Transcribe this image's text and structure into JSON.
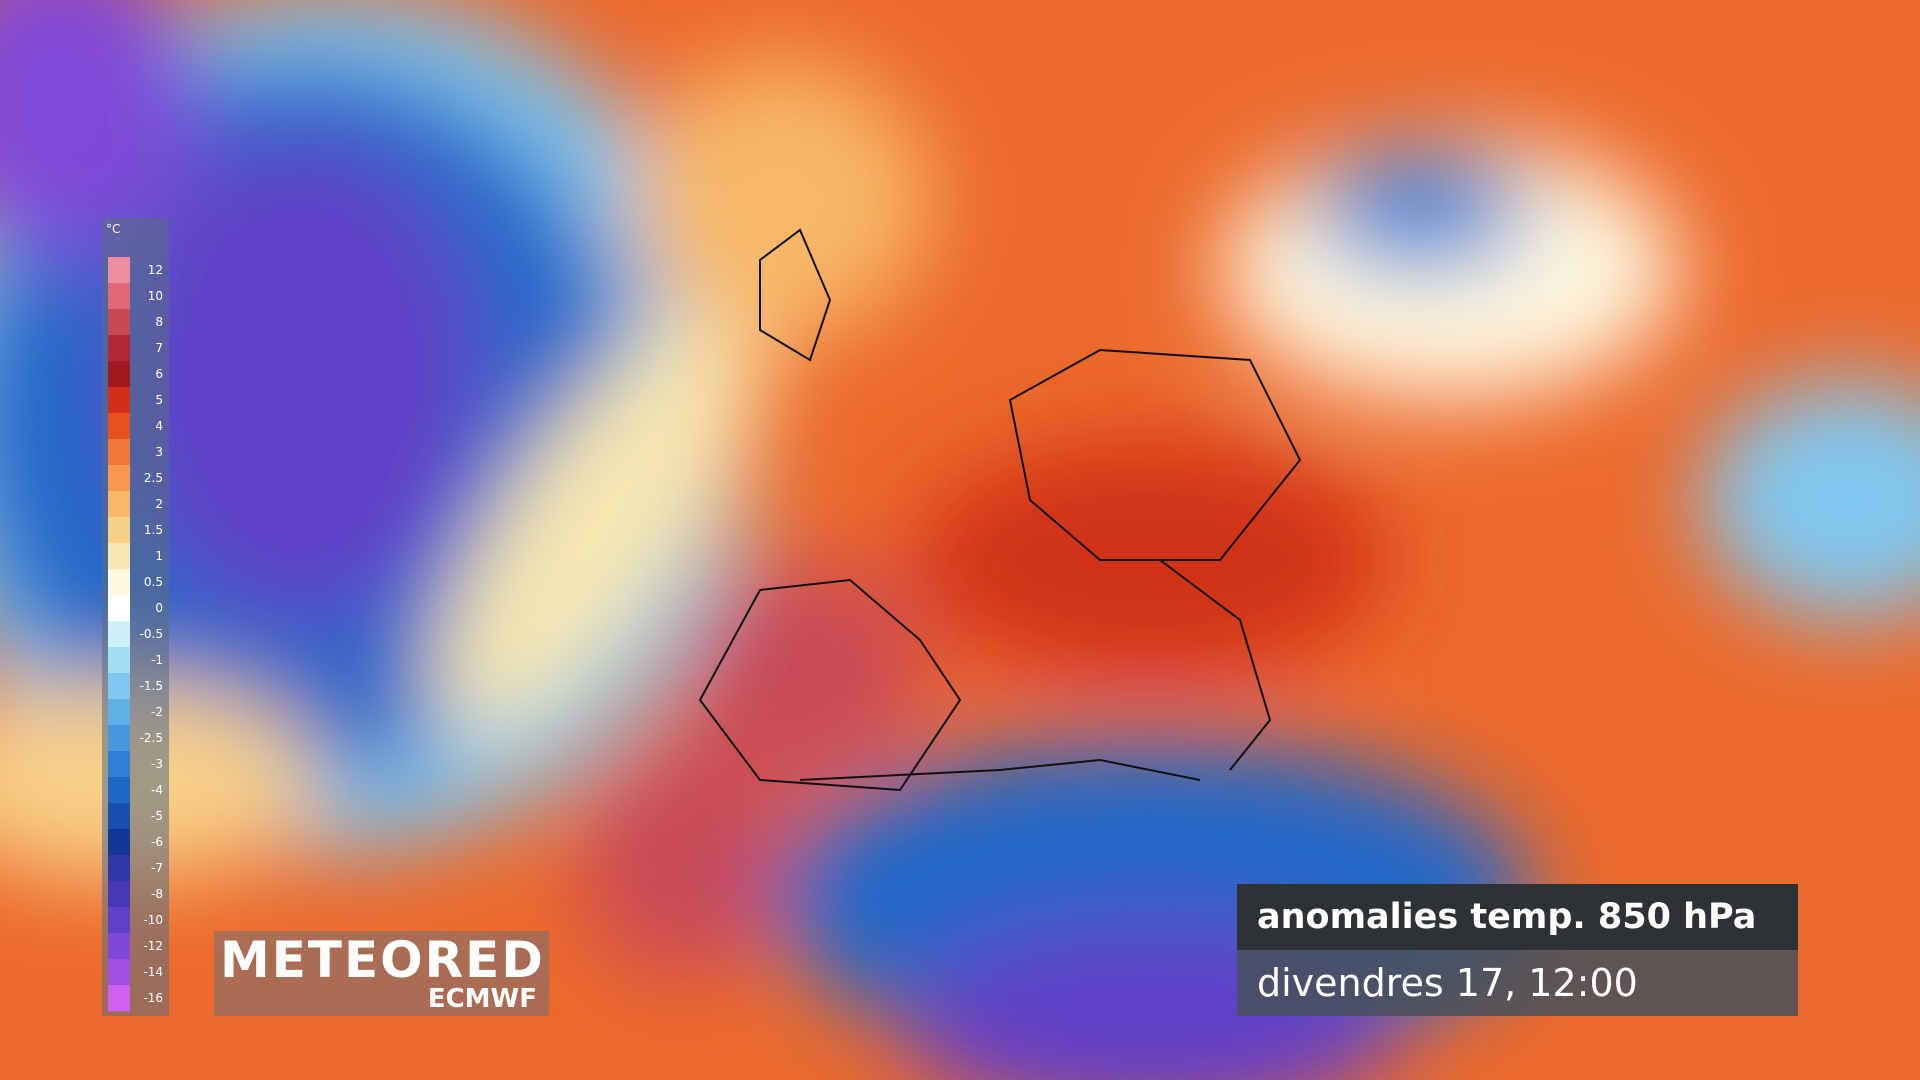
{
  "legend": {
    "unit": "°C",
    "items": [
      {
        "label": "12",
        "color": "#f08ca0"
      },
      {
        "label": "10",
        "color": "#e06878"
      },
      {
        "label": "8",
        "color": "#c84858"
      },
      {
        "label": "7",
        "color": "#b02838"
      },
      {
        "label": "6",
        "color": "#a01820"
      },
      {
        "label": "5",
        "color": "#d03018"
      },
      {
        "label": "4",
        "color": "#e85020"
      },
      {
        "label": "3",
        "color": "#f07838"
      },
      {
        "label": "2.5",
        "color": "#f89850"
      },
      {
        "label": "2",
        "color": "#f8b868"
      },
      {
        "label": "1.5",
        "color": "#f8d088"
      },
      {
        "label": "1",
        "color": "#f8e8b0"
      },
      {
        "label": "0.5",
        "color": "#fff8e0"
      },
      {
        "label": "0",
        "color": "#ffffff"
      },
      {
        "label": "-0.5",
        "color": "#d0f0f8"
      },
      {
        "label": "-1",
        "color": "#a0e0f0"
      },
      {
        "label": "-1.5",
        "color": "#80c8f0"
      },
      {
        "label": "-2",
        "color": "#60b0e8"
      },
      {
        "label": "-2.5",
        "color": "#4898e0"
      },
      {
        "label": "-3",
        "color": "#3080d8"
      },
      {
        "label": "-4",
        "color": "#2068c8"
      },
      {
        "label": "-5",
        "color": "#1850b0"
      },
      {
        "label": "-6",
        "color": "#103898"
      },
      {
        "label": "-7",
        "color": "#3038a8"
      },
      {
        "label": "-8",
        "color": "#4838b8"
      },
      {
        "label": "-10",
        "color": "#6040c8"
      },
      {
        "label": "-12",
        "color": "#8048d8"
      },
      {
        "label": "-14",
        "color": "#a050e0"
      },
      {
        "label": "-16",
        "color": "#d060f0"
      }
    ]
  },
  "logo": {
    "brand": "METEORED",
    "source": "ECMWF"
  },
  "caption": {
    "title": "anomalies temp. 850 hPa",
    "date": "divendres 17, 12:00"
  }
}
